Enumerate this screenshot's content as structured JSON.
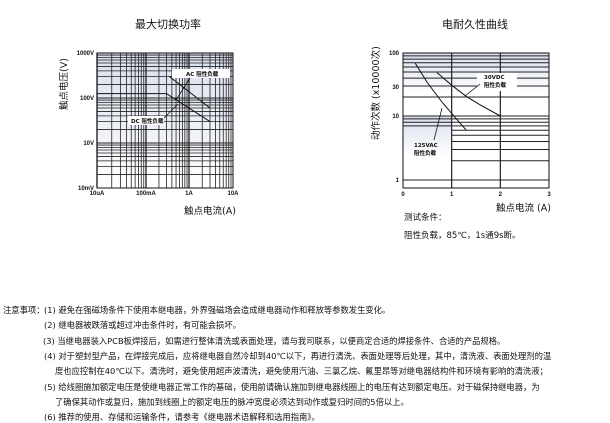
{
  "chart_data": [
    {
      "type": "line",
      "title": "最大切换功率",
      "xlabel": "触点电流(A)",
      "ylabel": "触点电压(V)",
      "x_scale": "log",
      "y_scale": "log",
      "x_ticks": [
        "10uA",
        "100mA",
        "1A",
        "10A"
      ],
      "x_tick_values": [
        1e-05,
        0.1,
        1,
        10
      ],
      "y_ticks": [
        "10mV",
        "10V",
        "100V",
        "1000V"
      ],
      "y_tick_values": [
        0.01,
        10,
        100,
        1000
      ],
      "grid": true,
      "series": [
        {
          "name": "DC 阻性负载",
          "x": [
            1e-05,
            0.3,
            3
          ],
          "y": [
            125,
            125,
            30
          ]
        },
        {
          "name": "AC 阻性负载",
          "x": [
            0.35,
            3
          ],
          "y": [
            300,
            60
          ]
        }
      ]
    },
    {
      "type": "line",
      "title": "电耐久性曲线",
      "xlabel": "触点电流 (A)",
      "ylabel": "动作次数 (x10000次)",
      "x_scale": "linear",
      "y_scale": "log",
      "xlim": [
        0,
        3
      ],
      "x_ticks": [
        "0",
        "1",
        "2",
        "3"
      ],
      "x_tick_values": [
        0,
        1,
        2,
        3
      ],
      "y_ticks": [
        "1",
        "10",
        "30",
        "100"
      ],
      "y_tick_values": [
        1,
        10,
        30,
        100
      ],
      "grid": true,
      "series": [
        {
          "name": "125VAC 阻性负载",
          "x": [
            0.25,
            0.5,
            0.8,
            1.0,
            1.3
          ],
          "y": [
            70,
            35,
            17,
            11,
            6
          ]
        },
        {
          "name": "30VDC 阻性负载",
          "x": [
            0.7,
            1.0,
            1.3,
            1.6,
            2.0
          ],
          "y": [
            50,
            32,
            21,
            15,
            10
          ]
        }
      ]
    }
  ],
  "test_conditions": {
    "title": "测试条件：",
    "text": "阻性负载，85℃，1s通9s断。"
  },
  "notes": {
    "label": "注意事项：",
    "items": [
      "(1) 避免在强磁场条件下使用本继电器，外界强磁场会造成继电器动作和释放等参数发生变化。",
      "(2) 继电器被跌落或超过冲击条件时，有可能会损坏。",
      "(3) 当继电器装入PCB板焊接后，如需进行整体清洗或表面处理，请与我司联系，以便商定合适的焊接条件、合适的产品规格。",
      "(4) 对于塑封型产品，在焊接完成后，应将继电器自然冷却到40℃以下，再进行清洗、表面处理等后处理，其中，清洗液、表面处理剂的温",
      "度也应控制在40℃以下。清洗时，避免使用超声波清洗，避免使用汽油、三氯乙烷、氟里昂等对继电器结构件和环境有影响的清洗液；",
      "(5) 给线圈施加额定电压是使继电器正常工作的基础，使用前请确认施加到继电器线圈上的电压有达到额定电压。对于磁保持继电器，为",
      "了确保其动作或复归，施加到线圈上的额定电压的脉冲宽度必须达到动作或复归时间的5倍以上。",
      "(6) 推荐的使用、存储和运输条件，请参考《继电器术语解释和选用指南》。"
    ]
  }
}
